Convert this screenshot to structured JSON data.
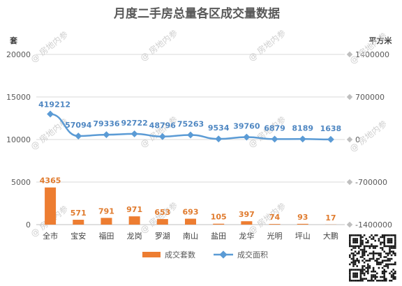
{
  "chart_data": {
    "type": "bar",
    "title": "月度二手房总量各区成交量数据",
    "y_left_unit": "套",
    "y_right_unit": "平方米",
    "categories": [
      "全市",
      "宝安",
      "福田",
      "龙岗",
      "罗湖",
      "南山",
      "盐田",
      "龙华",
      "光明",
      "坪山",
      "大鹏"
    ],
    "y_left_ticks": [
      0,
      5000,
      10000,
      15000,
      20000
    ],
    "y_left_lim": [
      0,
      20000
    ],
    "y_right_ticks": [
      -1400000,
      -700000,
      0,
      700000,
      1400000
    ],
    "y_right_lim": [
      -1400000,
      1400000
    ],
    "grid": true,
    "legend_position": "bottom",
    "series": [
      {
        "name": "成交套数",
        "type": "bar",
        "axis": "left",
        "color": "#ed7d31",
        "values": [
          4365,
          571,
          791,
          971,
          653,
          693,
          105,
          397,
          74,
          93,
          17
        ]
      },
      {
        "name": "成交面积",
        "type": "line",
        "axis": "right",
        "color": "#5b9bd5",
        "values": [
          419212,
          57094,
          79336,
          92722,
          48796,
          75263,
          9534,
          39760,
          6879,
          8189,
          1638
        ]
      }
    ]
  },
  "watermark": {
    "text": "房地内参"
  }
}
